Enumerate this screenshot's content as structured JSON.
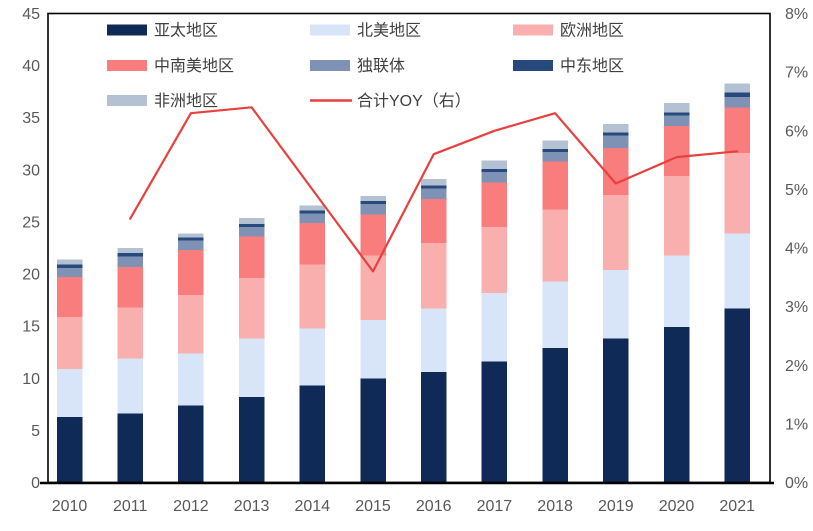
{
  "chart_data": {
    "type": "bar",
    "subtype": "stacked-bar-with-line-overlay",
    "title": "",
    "categories": [
      "2010",
      "2011",
      "2012",
      "2013",
      "2014",
      "2015",
      "2016",
      "2017",
      "2018",
      "2019",
      "2020",
      "2021"
    ],
    "series": [
      {
        "name": "亚太地区",
        "color": "#0f2a56",
        "values": [
          6.3,
          6.6,
          7.4,
          8.2,
          9.3,
          10.0,
          10.6,
          11.6,
          12.9,
          13.8,
          14.9,
          16.7
        ]
      },
      {
        "name": "北美地区",
        "color": "#d8e4f7",
        "values": [
          4.6,
          5.3,
          5.0,
          5.6,
          5.5,
          5.6,
          6.1,
          6.6,
          6.4,
          6.6,
          6.9,
          7.2
        ]
      },
      {
        "name": "欧洲地区",
        "color": "#f8afad",
        "values": [
          5.0,
          4.9,
          5.6,
          5.8,
          6.1,
          6.2,
          6.3,
          6.3,
          6.9,
          7.2,
          7.6,
          7.7
        ]
      },
      {
        "name": "中南美地区",
        "color": "#f97d7c",
        "values": [
          3.8,
          3.9,
          4.3,
          4.0,
          4.0,
          3.9,
          4.2,
          4.3,
          4.6,
          4.5,
          4.8,
          4.4
        ]
      },
      {
        "name": "独联体",
        "color": "#7e92b6",
        "values": [
          0.9,
          1.0,
          0.9,
          0.9,
          0.9,
          1.0,
          1.0,
          1.0,
          0.9,
          1.2,
          1.0,
          1.0
        ]
      },
      {
        "name": "中东地区",
        "color": "#27497c",
        "values": [
          0.3,
          0.3,
          0.3,
          0.3,
          0.3,
          0.3,
          0.3,
          0.3,
          0.3,
          0.3,
          0.3,
          0.4
        ]
      },
      {
        "name": "非洲地区",
        "color": "#b4c1d3",
        "values": [
          0.5,
          0.5,
          0.4,
          0.6,
          0.5,
          0.5,
          0.6,
          0.8,
          0.8,
          0.8,
          0.9,
          0.9
        ]
      }
    ],
    "line_series": {
      "name": "合计YOY（右）",
      "color": "#e8403e",
      "axis": "right",
      "unit": "%",
      "values": [
        null,
        4.5,
        6.3,
        6.4,
        5.0,
        3.6,
        5.6,
        6.0,
        6.3,
        5.1,
        5.55,
        5.65
      ]
    },
    "left_axis": {
      "min": 0,
      "max": 45,
      "step": 5,
      "tick_labels": [
        "0",
        "5",
        "10",
        "15",
        "20",
        "25",
        "30",
        "35",
        "40",
        "45"
      ]
    },
    "right_axis": {
      "min": 0,
      "max": 8,
      "step": 1,
      "tick_labels": [
        "0%",
        "1%",
        "2%",
        "3%",
        "4%",
        "5%",
        "6%",
        "7%",
        "8%"
      ]
    },
    "legend": {
      "position": "top-inside",
      "rows": 3,
      "columns": 3
    },
    "grid": false,
    "background_color": "#ffffff",
    "plot_border_color": "#000000",
    "axis_text_color": "#595959",
    "legend_text_color": "#404040"
  }
}
